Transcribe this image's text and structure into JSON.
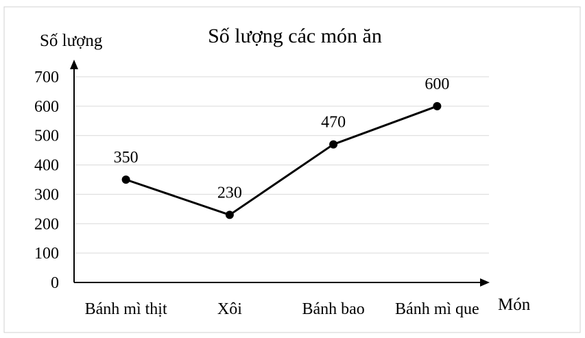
{
  "chart_data": {
    "type": "line",
    "title": "Số lượng các món ăn",
    "xlabel": "Món",
    "ylabel": "Số lượng",
    "categories": [
      "Bánh mì thịt",
      "Xôi",
      "Bánh bao",
      "Bánh mì que"
    ],
    "values": [
      350,
      230,
      470,
      600
    ],
    "data_labels": [
      "350",
      "230",
      "470",
      "600"
    ],
    "y_ticks": [
      "0",
      "100",
      "200",
      "300",
      "400",
      "500",
      "600",
      "700"
    ],
    "ylim": [
      0,
      700
    ],
    "grid": true,
    "legend": "none",
    "series_color": "#000000"
  }
}
